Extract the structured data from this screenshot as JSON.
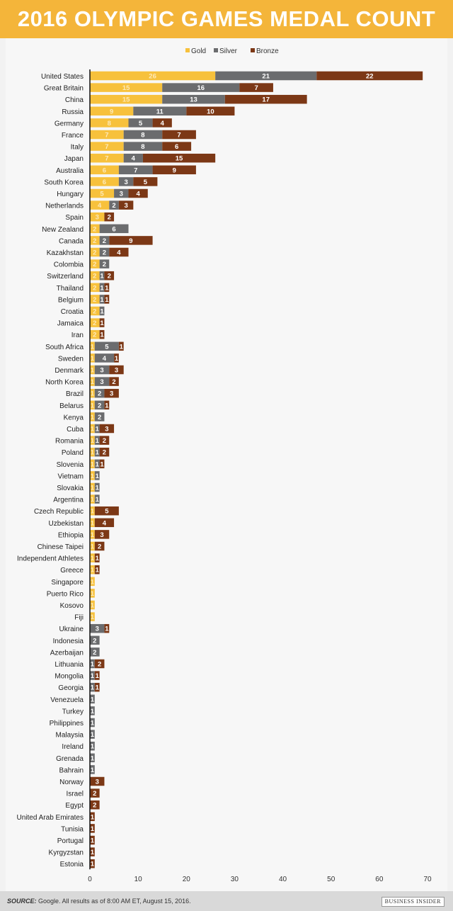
{
  "title": "2016 OLYMPIC GAMES MEDAL COUNT",
  "footer": {
    "source_label": "SOURCE:",
    "source_text": "Google. All results as of 8:00 AM ET, August 15, 2016.",
    "brand": "BUSINESS INSIDER"
  },
  "chart_data": {
    "type": "bar",
    "orientation": "horizontal-stacked",
    "title": "2016 OLYMPIC GAMES MEDAL COUNT",
    "xlim": [
      0,
      70
    ],
    "xticks": [
      0,
      10,
      20,
      30,
      40,
      50,
      60,
      70
    ],
    "legend": {
      "placement": "top-center",
      "entries": [
        "Gold",
        "Silver",
        "Bronze"
      ]
    },
    "colors": {
      "Gold": "#f7c13c",
      "Silver": "#6b6c6e",
      "Bronze": "#7c3816"
    },
    "categories": [
      "United States",
      "Great Britain",
      "China",
      "Russia",
      "Germany",
      "France",
      "Italy",
      "Japan",
      "Australia",
      "South Korea",
      "Hungary",
      "Netherlands",
      "Spain",
      "New Zealand",
      "Canada",
      "Kazakhstan",
      "Colombia",
      "Switzerland",
      "Thailand",
      "Belgium",
      "Croatia",
      "Jamaica",
      "Iran",
      "South Africa",
      "Sweden",
      "Denmark",
      "North Korea",
      "Brazil",
      "Belarus",
      "Kenya",
      "Cuba",
      "Romania",
      "Poland",
      "Slovenia",
      "Vietnam",
      "Slovakia",
      "Argentina",
      "Czech Republic",
      "Uzbekistan",
      "Ethiopia",
      "Chinese Taipei",
      "Independent Athletes",
      "Greece",
      "Singapore",
      "Puerto Rico",
      "Kosovo",
      "Fiji",
      "Ukraine",
      "Indonesia",
      "Azerbaijan",
      "Lithuania",
      "Mongolia",
      "Georgia",
      "Venezuela",
      "Turkey",
      "Philippines",
      "Malaysia",
      "Ireland",
      "Grenada",
      "Bahrain",
      "Norway",
      "Israel",
      "Egypt",
      "United Arab Emirates",
      "Tunisia",
      "Portugal",
      "Kyrgyzstan",
      "Estonia"
    ],
    "series": [
      {
        "name": "Gold",
        "values": [
          26,
          15,
          15,
          9,
          8,
          7,
          7,
          7,
          6,
          6,
          5,
          4,
          3,
          2,
          2,
          2,
          2,
          2,
          2,
          2,
          2,
          2,
          2,
          1,
          1,
          1,
          1,
          1,
          1,
          1,
          1,
          1,
          1,
          1,
          1,
          1,
          1,
          1,
          1,
          1,
          1,
          1,
          1,
          1,
          1,
          1,
          1,
          0,
          0,
          0,
          0,
          0,
          0,
          0,
          0,
          0,
          0,
          0,
          0,
          0,
          0,
          0,
          0,
          0,
          0,
          0,
          0,
          0
        ]
      },
      {
        "name": "Silver",
        "values": [
          21,
          16,
          13,
          11,
          5,
          8,
          8,
          4,
          7,
          3,
          3,
          2,
          0,
          6,
          2,
          2,
          2,
          1,
          1,
          1,
          1,
          0,
          0,
          5,
          4,
          3,
          3,
          2,
          2,
          2,
          1,
          1,
          1,
          1,
          1,
          1,
          1,
          0,
          0,
          0,
          0,
          0,
          0,
          0,
          0,
          0,
          0,
          3,
          2,
          2,
          1,
          1,
          1,
          1,
          1,
          1,
          1,
          1,
          1,
          1,
          0,
          0,
          0,
          0,
          0,
          0,
          0,
          0
        ]
      },
      {
        "name": "Bronze",
        "values": [
          22,
          7,
          17,
          10,
          4,
          7,
          6,
          15,
          9,
          5,
          4,
          3,
          2,
          0,
          9,
          4,
          0,
          2,
          1,
          1,
          0,
          1,
          1,
          1,
          1,
          3,
          2,
          3,
          1,
          0,
          3,
          2,
          2,
          1,
          0,
          0,
          0,
          5,
          4,
          3,
          2,
          1,
          1,
          0,
          0,
          0,
          0,
          1,
          0,
          0,
          2,
          1,
          1,
          0,
          0,
          0,
          0,
          0,
          0,
          0,
          3,
          2,
          2,
          1,
          1,
          1,
          1,
          1
        ]
      }
    ]
  }
}
